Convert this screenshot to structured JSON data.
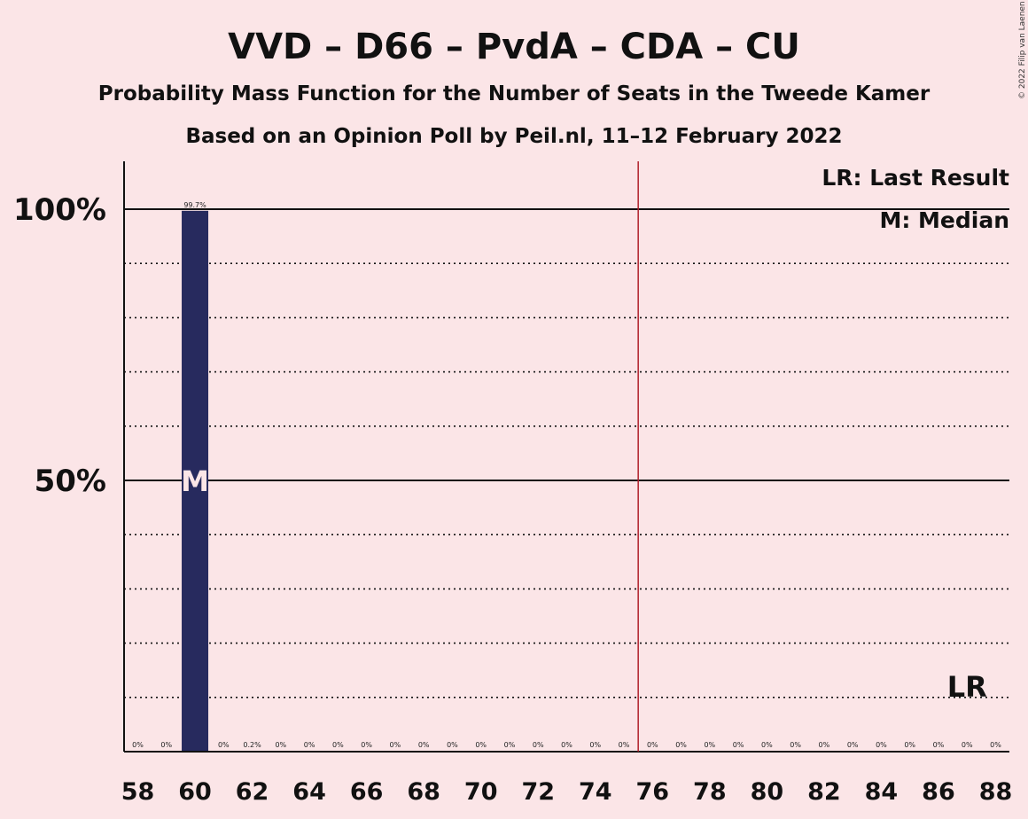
{
  "title": "VVD – D66 – PvdA – CDA – CU",
  "subtitle": "Probability Mass Function for the Number of Seats in the Tweede Kamer",
  "subtitle2": "Based on an Opinion Poll by Peil.nl, 11–12 February 2022",
  "copyright": "© 2022 Filip van Laenen",
  "legend": {
    "last_result": "LR: Last Result",
    "median": "M: Median"
  },
  "colors": {
    "background": "#fbe5e7",
    "bar": "#272a5e",
    "majority_line": "#b0202a",
    "axis": "#111111"
  },
  "chart_data": {
    "type": "bar",
    "title": "VVD – D66 – PvdA – CDA – CU",
    "xlabel": "",
    "ylabel": "",
    "ylim": [
      0,
      110
    ],
    "ytick_labels": [
      {
        "value": 50,
        "label": "50%"
      },
      {
        "value": 100,
        "label": "100%"
      }
    ],
    "minor_grid_every": 10,
    "majority_threshold": 75.5,
    "median_seat": 60,
    "median_marker": "M",
    "last_result_seat": 87,
    "last_result_marker": "LR",
    "x": [
      58,
      59,
      60,
      61,
      62,
      63,
      64,
      65,
      66,
      67,
      68,
      69,
      70,
      71,
      72,
      73,
      74,
      75,
      76,
      77,
      78,
      79,
      80,
      81,
      82,
      83,
      84,
      85,
      86,
      87,
      88
    ],
    "values": [
      0,
      0,
      99.7,
      0,
      0.2,
      0,
      0,
      0,
      0,
      0,
      0,
      0,
      0,
      0,
      0,
      0,
      0,
      0,
      0,
      0,
      0,
      0,
      0,
      0,
      0,
      0,
      0,
      0,
      0,
      0,
      0
    ],
    "data_labels": [
      "0%",
      "0%",
      "99.7%",
      "0%",
      "0.2%",
      "0%",
      "0%",
      "0%",
      "0%",
      "0%",
      "0%",
      "0%",
      "0%",
      "0%",
      "0%",
      "0%",
      "0%",
      "0%",
      "0%",
      "0%",
      "0%",
      "0%",
      "0%",
      "0%",
      "0%",
      "0%",
      "0%",
      "0%",
      "0%",
      "0%",
      "0%"
    ],
    "xtick_labels": [
      "58",
      "60",
      "62",
      "64",
      "66",
      "68",
      "70",
      "72",
      "74",
      "76",
      "78",
      "80",
      "82",
      "84",
      "86",
      "88"
    ]
  }
}
